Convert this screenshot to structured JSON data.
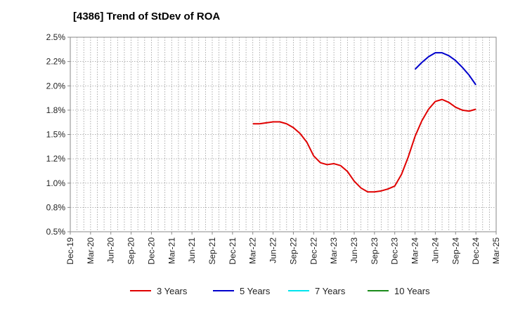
{
  "title": "[4386]  Trend of StDev of ROA",
  "colors": {
    "3 Years": "#e00000",
    "5 Years": "#0000cc",
    "7 Years": "#00e5ee",
    "10 Years": "#1a8a1a"
  },
  "chart_data": {
    "type": "line",
    "title": "[4386]  Trend of StDev of ROA",
    "xlabel": "",
    "ylabel": "",
    "ylim": [
      0.5,
      2.5
    ],
    "yticks": [
      "0.5%",
      "0.8%",
      "1.0%",
      "1.2%",
      "1.5%",
      "1.8%",
      "2.0%",
      "2.2%",
      "2.5%"
    ],
    "xticks": [
      "Dec-19",
      "Mar-20",
      "Jun-20",
      "Sep-20",
      "Dec-20",
      "Mar-21",
      "Jun-21",
      "Sep-21",
      "Dec-21",
      "Mar-22",
      "Jun-22",
      "Sep-22",
      "Dec-22",
      "Mar-23",
      "Jun-23",
      "Sep-23",
      "Dec-23",
      "Mar-24",
      "Jun-24",
      "Sep-24",
      "Dec-24",
      "Mar-25"
    ],
    "grid": true,
    "legend_position": "bottom",
    "series": [
      {
        "name": "3 Years",
        "x": [
          "Mar-22",
          "Apr-22",
          "May-22",
          "Jun-22",
          "Jul-22",
          "Aug-22",
          "Sep-22",
          "Oct-22",
          "Nov-22",
          "Dec-22",
          "Jan-23",
          "Feb-23",
          "Mar-23",
          "Apr-23",
          "May-23",
          "Jun-23",
          "Jul-23",
          "Aug-23",
          "Sep-23",
          "Oct-23",
          "Nov-23",
          "Dec-23",
          "Jan-24",
          "Feb-24",
          "Mar-24",
          "Apr-24",
          "May-24",
          "Jun-24",
          "Jul-24",
          "Aug-24",
          "Sep-24",
          "Oct-24",
          "Nov-24",
          "Dec-24"
        ],
        "values": [
          1.61,
          1.61,
          1.62,
          1.63,
          1.63,
          1.61,
          1.57,
          1.51,
          1.42,
          1.28,
          1.21,
          1.19,
          1.2,
          1.18,
          1.12,
          1.02,
          0.95,
          0.91,
          0.91,
          0.92,
          0.94,
          0.97,
          1.09,
          1.27,
          1.48,
          1.64,
          1.76,
          1.84,
          1.86,
          1.83,
          1.78,
          1.75,
          1.74,
          1.76
        ]
      },
      {
        "name": "5 Years",
        "x": [
          "Mar-24",
          "Apr-24",
          "May-24",
          "Jun-24",
          "Jul-24",
          "Aug-24",
          "Sep-24",
          "Oct-24",
          "Nov-24",
          "Dec-24"
        ],
        "values": [
          2.17,
          2.24,
          2.3,
          2.34,
          2.34,
          2.31,
          2.26,
          2.19,
          2.11,
          2.01
        ]
      },
      {
        "name": "7 Years",
        "x": [],
        "values": []
      },
      {
        "name": "10 Years",
        "x": [],
        "values": []
      }
    ]
  }
}
